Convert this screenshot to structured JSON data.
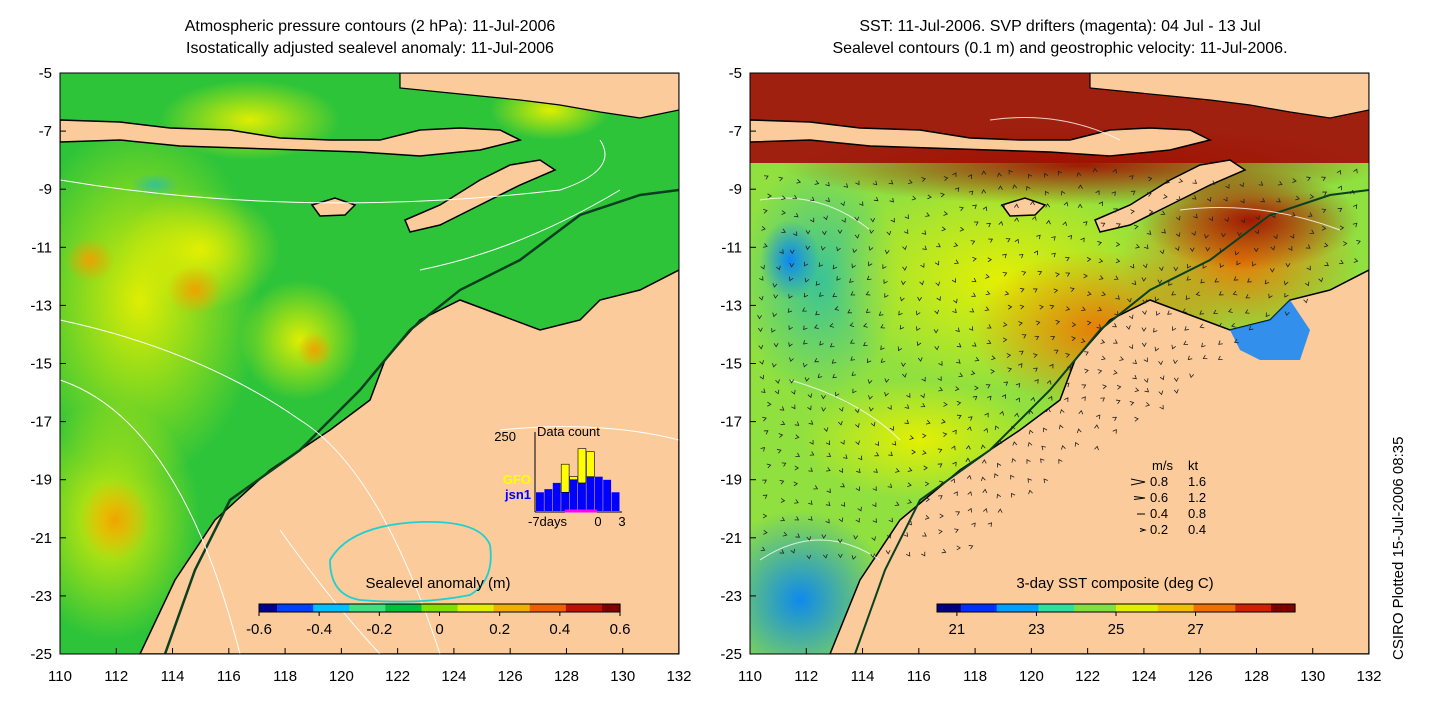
{
  "left_panel": {
    "title_line1": "Atmospheric pressure contours (2 hPa): 11-Jul-2006",
    "title_line2": "Isostatically adjusted sealevel anomaly: 11-Jul-2006",
    "x_ticks": [
      "110",
      "112",
      "114",
      "116",
      "118",
      "120",
      "122",
      "124",
      "126",
      "128",
      "130",
      "132"
    ],
    "y_ticks": [
      "-5",
      "-7",
      "-9",
      "-11",
      "-13",
      "-15",
      "-17",
      "-19",
      "-21",
      "-23",
      "-25"
    ],
    "colorbar": {
      "label": "Sealevel anomaly (m)",
      "ticks": [
        "-0.6",
        "-0.4",
        "-0.2",
        "0",
        "0.2",
        "0.4",
        "0.6"
      ],
      "range": [
        -0.6,
        0.6
      ]
    },
    "inset": {
      "title": "Data count",
      "ymax_label": "250",
      "series_gfo": "GFO",
      "series_jsn1": "jsn1",
      "x_label_left": "-7days",
      "x_label_mid": "0",
      "x_label_right": "3",
      "colors": {
        "gfo": "#ffff00",
        "jsn1": "#0000ff"
      },
      "gfo_counts": [
        30,
        50,
        40,
        150,
        110,
        200,
        190,
        0,
        0,
        0
      ],
      "jsn1_counts": [
        60,
        70,
        90,
        60,
        100,
        90,
        110,
        110,
        100,
        60
      ]
    }
  },
  "right_panel": {
    "title_line1": "SST: 11-Jul-2006. SVP drifters (magenta): 04 Jul - 13 Jul",
    "title_line2": "Sealevel contours (0.1 m) and geostrophic velocity: 11-Jul-2006.",
    "x_ticks": [
      "110",
      "112",
      "114",
      "116",
      "118",
      "120",
      "122",
      "124",
      "126",
      "128",
      "130",
      "132"
    ],
    "y_ticks": [
      "-5",
      "-7",
      "-9",
      "-11",
      "-13",
      "-15",
      "-17",
      "-19",
      "-21",
      "-23",
      "-25"
    ],
    "colorbar": {
      "label": "3-day SST composite (deg C)",
      "ticks": [
        "21",
        "23",
        "25",
        "27"
      ],
      "range": [
        20.5,
        29.5
      ]
    },
    "velocity_legend": {
      "header_ms": "m/s",
      "header_kt": "kt",
      "rows": [
        {
          "ms": "0.8",
          "kt": "1.6"
        },
        {
          "ms": "0.6",
          "kt": "1.2"
        },
        {
          "ms": "0.4",
          "kt": "0.8"
        },
        {
          "ms": "0.2",
          "kt": "0.4"
        }
      ]
    }
  },
  "credit": "CSIRO Plotted 15-Jul-2006 08:35",
  "colors": {
    "land": "#fbcb9b",
    "sla_scale": [
      "#000090",
      "#0040ff",
      "#00c0ff",
      "#40e080",
      "#00c040",
      "#80e000",
      "#e0f000",
      "#f0b000",
      "#f06000",
      "#c01000",
      "#800000"
    ],
    "sst_scale": [
      "#000080",
      "#0030ff",
      "#00a0ff",
      "#30e0a0",
      "#80e040",
      "#e0f000",
      "#f0c000",
      "#f07000",
      "#d02000",
      "#800000"
    ]
  }
}
